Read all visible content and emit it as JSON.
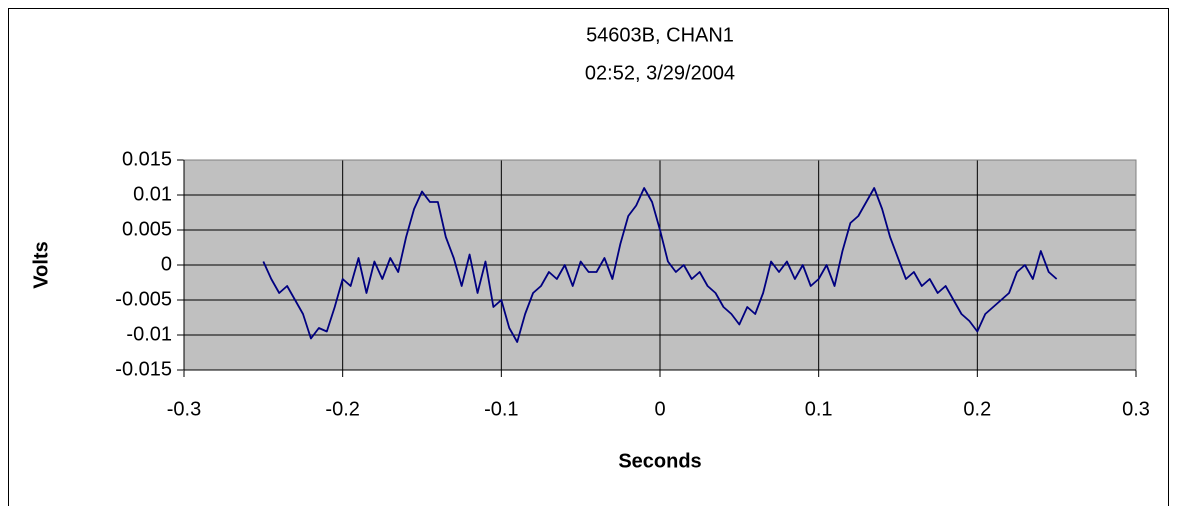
{
  "chart_data": {
    "type": "line",
    "title": "54603B, CHAN1",
    "subtitle": "02:52, 3/29/2004",
    "x_label": "Seconds",
    "y_label": "Volts",
    "color": "#000080",
    "grid": true,
    "xlim": [
      -0.3,
      0.3
    ],
    "xticks": [
      -0.3,
      -0.2,
      -0.1,
      0,
      0.1,
      0.2,
      0.3
    ],
    "ylim": [
      -0.015,
      0.015
    ],
    "yticks": [
      -0.015,
      -0.01,
      -0.005,
      0,
      0.005,
      0.01,
      0.015
    ],
    "x": [
      -0.25,
      -0.245,
      -0.24,
      -0.235,
      -0.23,
      -0.225,
      -0.22,
      -0.215,
      -0.21,
      -0.205,
      -0.2,
      -0.195,
      -0.19,
      -0.185,
      -0.18,
      -0.175,
      -0.17,
      -0.165,
      -0.16,
      -0.155,
      -0.15,
      -0.145,
      -0.14,
      -0.135,
      -0.13,
      -0.125,
      -0.12,
      -0.115,
      -0.11,
      -0.105,
      -0.1,
      -0.095,
      -0.09,
      -0.085,
      -0.08,
      -0.075,
      -0.07,
      -0.065,
      -0.06,
      -0.055,
      -0.05,
      -0.045,
      -0.04,
      -0.035,
      -0.03,
      -0.025,
      -0.02,
      -0.015,
      -0.01,
      -0.005,
      0,
      0.005,
      0.01,
      0.015,
      0.02,
      0.025,
      0.03,
      0.035,
      0.04,
      0.045,
      0.05,
      0.055,
      0.06,
      0.065,
      0.07,
      0.075,
      0.08,
      0.085,
      0.09,
      0.095,
      0.1,
      0.105,
      0.11,
      0.115,
      0.12,
      0.125,
      0.13,
      0.135,
      0.14,
      0.145,
      0.15,
      0.155,
      0.16,
      0.165,
      0.17,
      0.175,
      0.18,
      0.185,
      0.19,
      0.195,
      0.2,
      0.205,
      0.21,
      0.215,
      0.22,
      0.225,
      0.23,
      0.235,
      0.24,
      0.245,
      0.25
    ],
    "values": [
      0.0005,
      -0.002,
      -0.004,
      -0.003,
      -0.005,
      -0.007,
      -0.0105,
      -0.009,
      -0.0095,
      -0.006,
      -0.002,
      -0.003,
      0.001,
      -0.004,
      0.0005,
      -0.002,
      0.001,
      -0.001,
      0.004,
      0.008,
      0.0105,
      0.009,
      0.009,
      0.004,
      0.001,
      -0.003,
      0.0015,
      -0.004,
      0.0005,
      -0.006,
      -0.005,
      -0.009,
      -0.011,
      -0.007,
      -0.004,
      -0.003,
      -0.001,
      -0.002,
      0.0,
      -0.003,
      0.0005,
      -0.001,
      -0.001,
      0.001,
      -0.002,
      0.003,
      0.007,
      0.0085,
      0.011,
      0.009,
      0.005,
      0.0005,
      -0.001,
      0.0,
      -0.002,
      -0.001,
      -0.003,
      -0.004,
      -0.006,
      -0.007,
      -0.0085,
      -0.006,
      -0.007,
      -0.004,
      0.0005,
      -0.001,
      0.0005,
      -0.002,
      0.0,
      -0.003,
      -0.002,
      0.0,
      -0.003,
      0.002,
      0.006,
      0.007,
      0.009,
      0.011,
      0.008,
      0.004,
      0.001,
      -0.002,
      -0.001,
      -0.003,
      -0.002,
      -0.004,
      -0.003,
      -0.005,
      -0.007,
      -0.008,
      -0.0095,
      -0.007,
      -0.006,
      -0.005,
      -0.004,
      -0.001,
      0.0,
      -0.002,
      0.002,
      -0.001,
      -0.002
    ]
  }
}
